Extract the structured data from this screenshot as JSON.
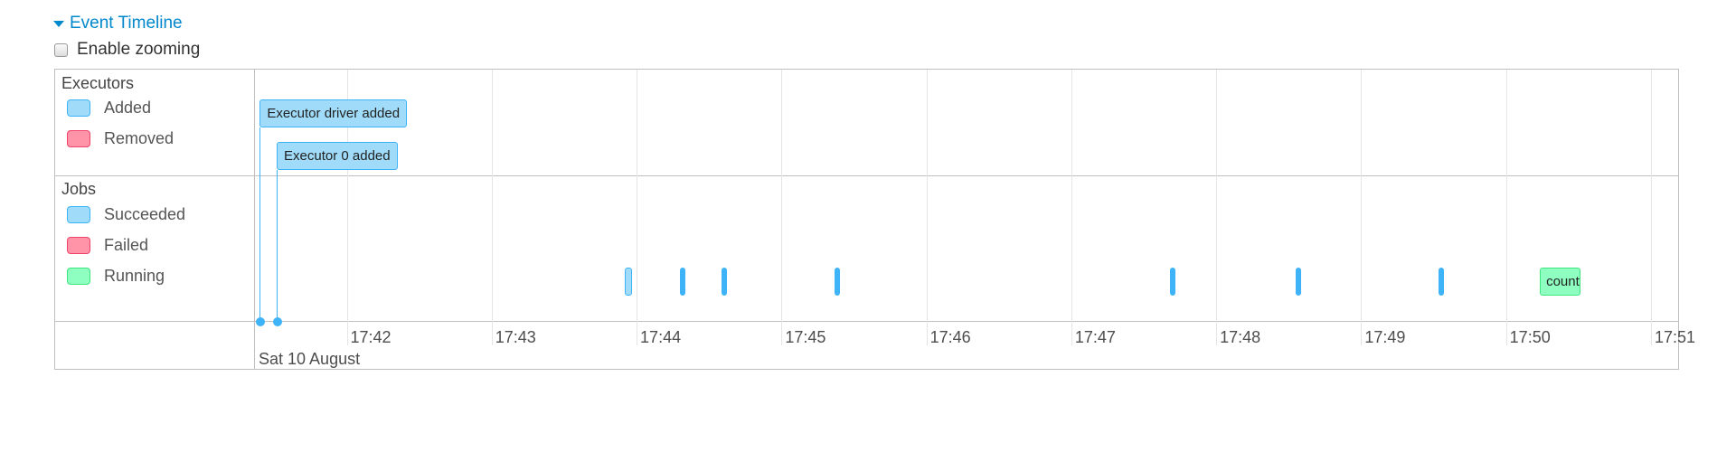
{
  "header": {
    "title": "Event Timeline",
    "toggle_icon": "caret-down-icon"
  },
  "zoom": {
    "label": "Enable zooming",
    "checked": false
  },
  "colors": {
    "added": "#a0dcfa",
    "added_border": "#3eb3f7",
    "removed": "#ff94a8",
    "removed_border": "#f0436a",
    "succeeded": "#a0dcfa",
    "succeeded_border": "#3eb3f7",
    "failed": "#ff94a8",
    "failed_border": "#f0436a",
    "running": "#8effc1",
    "running_border": "#3ee67f",
    "title": "#0088cc"
  },
  "groups": {
    "executors": {
      "title": "Executors",
      "legend": [
        {
          "label": "Added"
        },
        {
          "label": "Removed"
        }
      ]
    },
    "jobs": {
      "title": "Jobs",
      "legend": [
        {
          "label": "Succeeded"
        },
        {
          "label": "Failed"
        },
        {
          "label": "Running"
        }
      ]
    }
  },
  "axis": {
    "range": [
      "17:41:22",
      "17:51:12"
    ],
    "ticks": [
      "17:42",
      "17:43",
      "17:44",
      "17:45",
      "17:46",
      "17:47",
      "17:48",
      "17:49",
      "17:50",
      "17:51"
    ],
    "date": "Sat 10 August"
  },
  "executor_events": [
    {
      "label": "Executor driver added",
      "time": "17:41:24",
      "status": "added"
    },
    {
      "label": "Executor 0 added",
      "time": "17:41:31",
      "status": "added"
    }
  ],
  "jobs": [
    {
      "start": "17:43:55",
      "end": "17:43:57",
      "status": "succeeded"
    },
    {
      "start": "17:44:18",
      "end": "17:44:18",
      "status": "succeeded"
    },
    {
      "start": "17:44:35",
      "end": "17:44:35",
      "status": "succeeded"
    },
    {
      "start": "17:45:22",
      "end": "17:45:22",
      "status": "succeeded"
    },
    {
      "start": "17:47:41",
      "end": "17:47:42",
      "status": "succeeded"
    },
    {
      "start": "17:48:33",
      "end": "17:48:33",
      "status": "succeeded"
    },
    {
      "start": "17:49:32",
      "end": "17:49:32",
      "status": "succeeded"
    },
    {
      "start": "17:50:14",
      "end": "17:50:31",
      "status": "running",
      "label": "count"
    }
  ]
}
